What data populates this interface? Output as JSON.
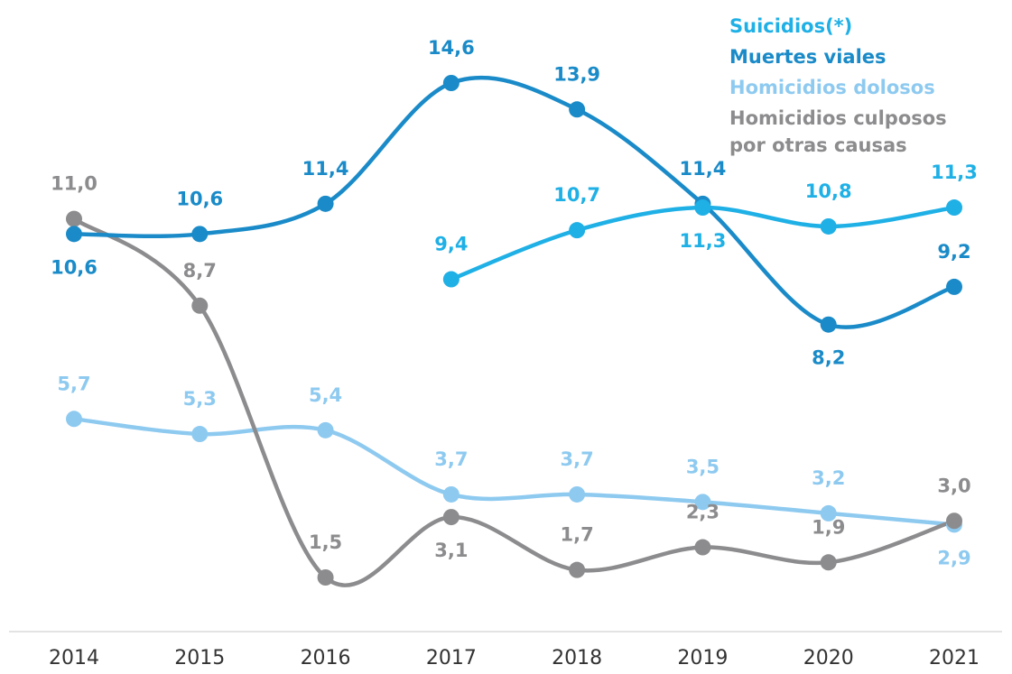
{
  "chart_data": {
    "type": "line",
    "categories": [
      "2014",
      "2015",
      "2016",
      "2017",
      "2018",
      "2019",
      "2020",
      "2021"
    ],
    "series": [
      {
        "name": "Suicidios(*)",
        "color": "#1fb0e6",
        "values": [
          null,
          null,
          null,
          9.4,
          10.7,
          11.3,
          10.8,
          11.3
        ],
        "value_labels": [
          null,
          null,
          null,
          "9,4",
          "10,7",
          "11,3",
          "10,8",
          "11,3"
        ]
      },
      {
        "name": "Muertes viales",
        "color": "#1a8bc8",
        "values": [
          10.6,
          10.6,
          11.4,
          14.6,
          13.9,
          11.4,
          8.2,
          9.2
        ],
        "value_labels": [
          "10,6",
          "10,6",
          "11,4",
          "14,6",
          "13,9",
          "11,4",
          "8,2",
          "9,2"
        ]
      },
      {
        "name": "Homicidios dolosos",
        "color": "#8ecaf0",
        "values": [
          5.7,
          5.3,
          5.4,
          3.7,
          3.7,
          3.5,
          3.2,
          2.9
        ],
        "value_labels": [
          "5,7",
          "5,3",
          "5,4",
          "3,7",
          "3,7",
          "3,5",
          "3,2",
          "2,9"
        ]
      },
      {
        "name": "Homicidios culposos por otras causas",
        "color": "#8c8c8e",
        "values": [
          11.0,
          8.7,
          1.5,
          3.1,
          1.7,
          2.3,
          1.9,
          3.0
        ],
        "value_labels": [
          "11,0",
          "8,7",
          "1,5",
          "3,1",
          "1,7",
          "2,3",
          "1,9",
          "3,0"
        ]
      }
    ]
  }
}
